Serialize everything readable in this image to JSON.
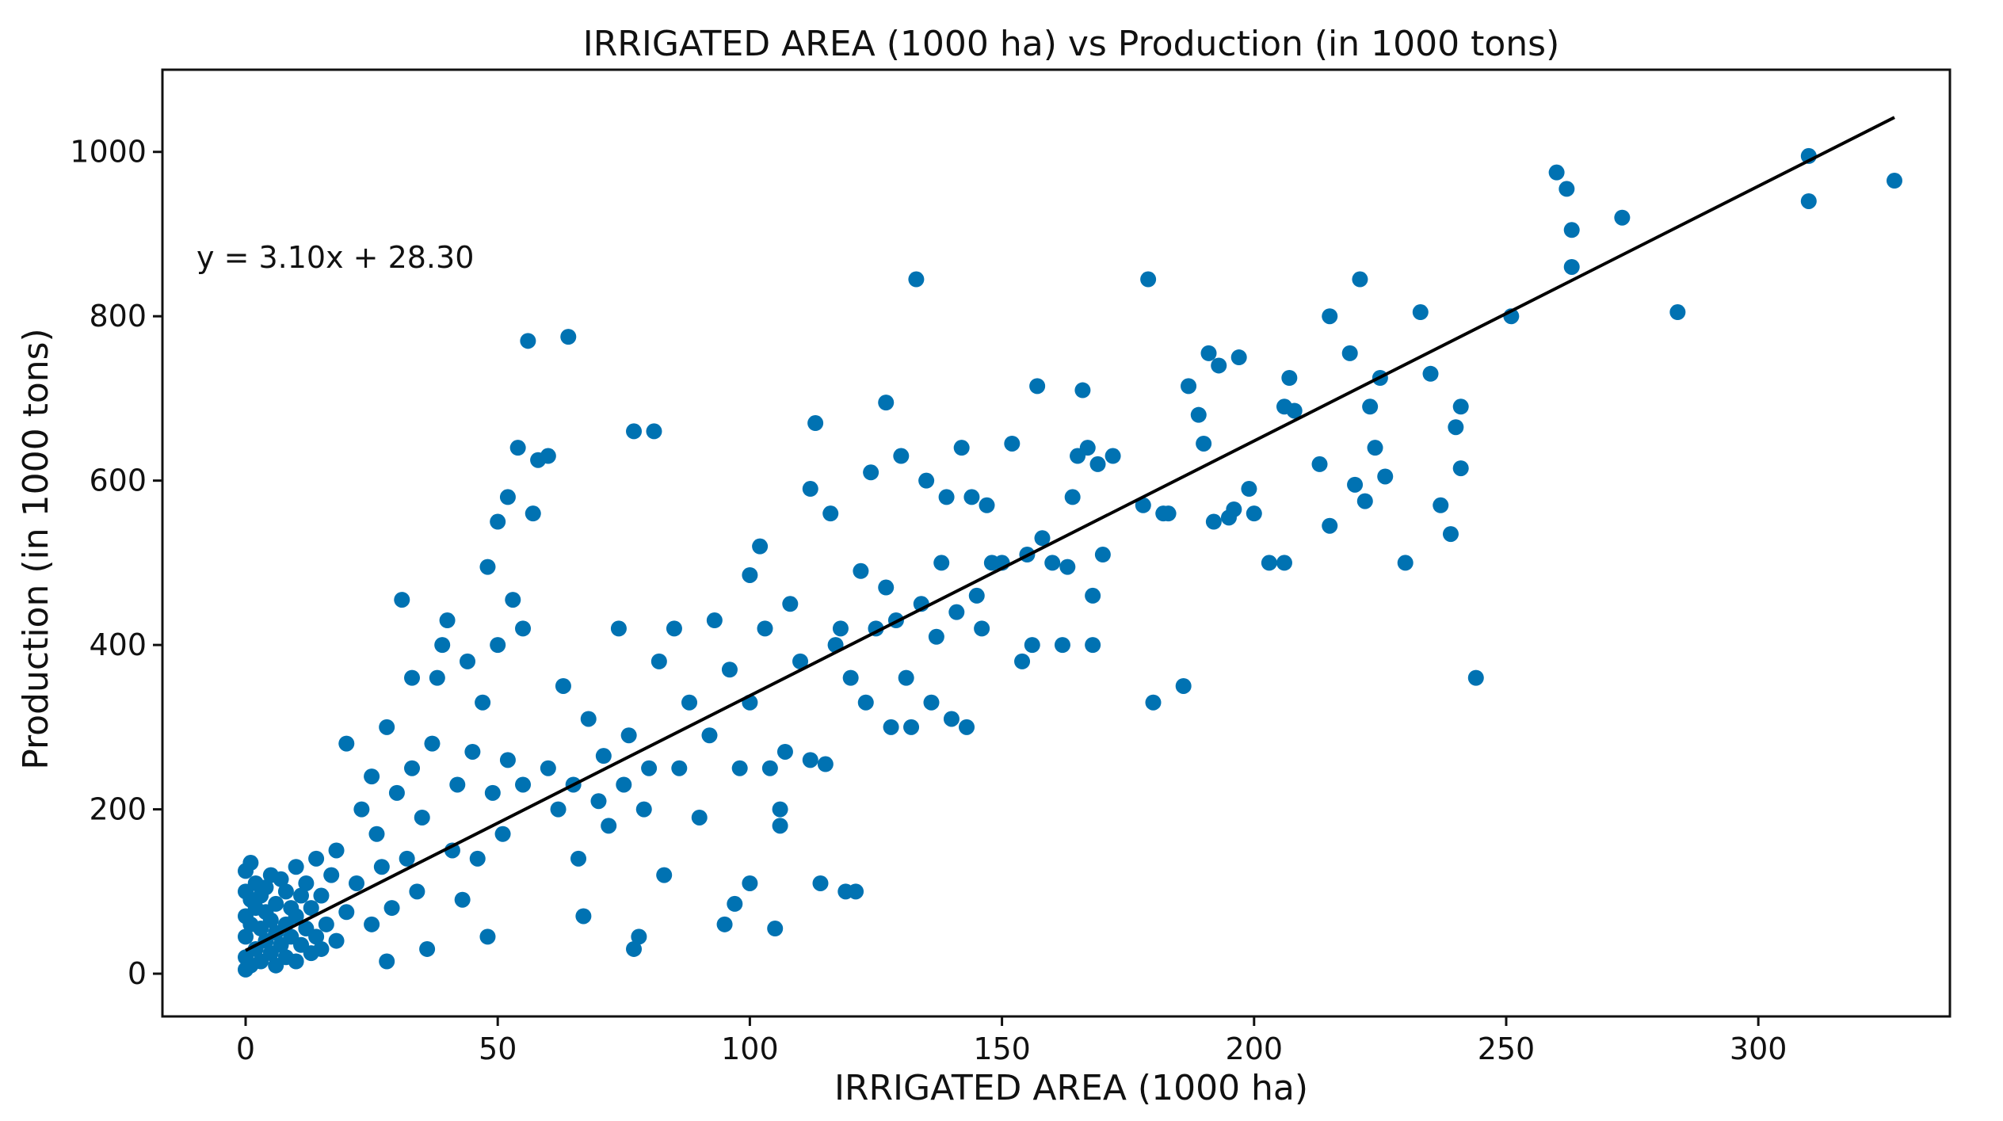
{
  "chart_data": {
    "type": "scatter",
    "title": "IRRIGATED AREA (1000 ha) vs Production (in 1000 tons)",
    "xlabel": "IRRIGATED AREA (1000 ha)",
    "ylabel": "Production (in 1000 tons)",
    "xlim": [
      -16.5,
      338
    ],
    "ylim": [
      -52,
      1100
    ],
    "xticks": [
      0,
      50,
      100,
      150,
      200,
      250,
      300
    ],
    "yticks": [
      0,
      200,
      400,
      600,
      800,
      1000
    ],
    "grid": false,
    "series": [
      {
        "name": "observations",
        "color": "#0072b2",
        "points": [
          [
            0,
            5
          ],
          [
            0,
            20
          ],
          [
            0,
            45
          ],
          [
            0,
            70
          ],
          [
            0,
            100
          ],
          [
            0,
            125
          ],
          [
            1,
            135
          ],
          [
            1,
            10
          ],
          [
            1,
            60
          ],
          [
            1,
            90
          ],
          [
            2,
            30
          ],
          [
            2,
            80
          ],
          [
            2,
            110
          ],
          [
            3,
            15
          ],
          [
            3,
            55
          ],
          [
            3,
            95
          ],
          [
            4,
            40
          ],
          [
            4,
            75
          ],
          [
            4,
            105
          ],
          [
            5,
            25
          ],
          [
            5,
            65
          ],
          [
            5,
            120
          ],
          [
            6,
            10
          ],
          [
            6,
            50
          ],
          [
            6,
            85
          ],
          [
            7,
            35
          ],
          [
            7,
            115
          ],
          [
            8,
            20
          ],
          [
            8,
            60
          ],
          [
            8,
            100
          ],
          [
            9,
            45
          ],
          [
            9,
            80
          ],
          [
            10,
            15
          ],
          [
            10,
            70
          ],
          [
            10,
            130
          ],
          [
            11,
            35
          ],
          [
            11,
            95
          ],
          [
            12,
            55
          ],
          [
            12,
            110
          ],
          [
            13,
            25
          ],
          [
            13,
            80
          ],
          [
            14,
            45
          ],
          [
            14,
            140
          ],
          [
            15,
            30
          ],
          [
            15,
            95
          ],
          [
            16,
            60
          ],
          [
            17,
            120
          ],
          [
            18,
            40
          ],
          [
            18,
            150
          ],
          [
            20,
            75
          ],
          [
            20,
            280
          ],
          [
            22,
            110
          ],
          [
            23,
            200
          ],
          [
            25,
            60
          ],
          [
            25,
            240
          ],
          [
            26,
            170
          ],
          [
            27,
            130
          ],
          [
            28,
            15
          ],
          [
            28,
            300
          ],
          [
            29,
            80
          ],
          [
            30,
            220
          ],
          [
            31,
            455
          ],
          [
            32,
            140
          ],
          [
            33,
            250
          ],
          [
            33,
            360
          ],
          [
            34,
            100
          ],
          [
            35,
            190
          ],
          [
            36,
            30
          ],
          [
            37,
            280
          ],
          [
            38,
            360
          ],
          [
            39,
            400
          ],
          [
            40,
            430
          ],
          [
            41,
            150
          ],
          [
            42,
            230
          ],
          [
            43,
            90
          ],
          [
            44,
            380
          ],
          [
            45,
            270
          ],
          [
            46,
            140
          ],
          [
            47,
            330
          ],
          [
            48,
            45
          ],
          [
            48,
            495
          ],
          [
            49,
            220
          ],
          [
            50,
            400
          ],
          [
            50,
            550
          ],
          [
            51,
            170
          ],
          [
            52,
            260
          ],
          [
            52,
            580
          ],
          [
            53,
            455
          ],
          [
            54,
            640
          ],
          [
            55,
            230
          ],
          [
            55,
            420
          ],
          [
            56,
            770
          ],
          [
            57,
            560
          ],
          [
            58,
            625
          ],
          [
            60,
            250
          ],
          [
            60,
            630
          ],
          [
            62,
            200
          ],
          [
            63,
            350
          ],
          [
            64,
            775
          ],
          [
            65,
            230
          ],
          [
            66,
            140
          ],
          [
            67,
            70
          ],
          [
            68,
            310
          ],
          [
            70,
            210
          ],
          [
            71,
            265
          ],
          [
            72,
            180
          ],
          [
            74,
            420
          ],
          [
            75,
            230
          ],
          [
            76,
            290
          ],
          [
            77,
            30
          ],
          [
            77,
            660
          ],
          [
            78,
            45
          ],
          [
            79,
            200
          ],
          [
            80,
            250
          ],
          [
            81,
            660
          ],
          [
            82,
            380
          ],
          [
            83,
            120
          ],
          [
            85,
            420
          ],
          [
            86,
            250
          ],
          [
            88,
            330
          ],
          [
            90,
            190
          ],
          [
            92,
            290
          ],
          [
            93,
            430
          ],
          [
            95,
            60
          ],
          [
            96,
            370
          ],
          [
            97,
            85
          ],
          [
            98,
            250
          ],
          [
            100,
            110
          ],
          [
            100,
            330
          ],
          [
            100,
            485
          ],
          [
            102,
            520
          ],
          [
            103,
            420
          ],
          [
            104,
            250
          ],
          [
            105,
            55
          ],
          [
            106,
            180
          ],
          [
            106,
            200
          ],
          [
            107,
            270
          ],
          [
            108,
            450
          ],
          [
            110,
            380
          ],
          [
            112,
            260
          ],
          [
            112,
            590
          ],
          [
            113,
            670
          ],
          [
            114,
            110
          ],
          [
            115,
            255
          ],
          [
            116,
            560
          ],
          [
            117,
            400
          ],
          [
            118,
            420
          ],
          [
            119,
            100
          ],
          [
            120,
            360
          ],
          [
            121,
            100
          ],
          [
            122,
            490
          ],
          [
            123,
            330
          ],
          [
            124,
            610
          ],
          [
            125,
            420
          ],
          [
            127,
            470
          ],
          [
            127,
            695
          ],
          [
            128,
            300
          ],
          [
            129,
            430
          ],
          [
            130,
            630
          ],
          [
            131,
            360
          ],
          [
            132,
            300
          ],
          [
            133,
            845
          ],
          [
            134,
            450
          ],
          [
            135,
            600
          ],
          [
            136,
            330
          ],
          [
            137,
            410
          ],
          [
            138,
            500
          ],
          [
            139,
            580
          ],
          [
            140,
            310
          ],
          [
            141,
            440
          ],
          [
            142,
            640
          ],
          [
            143,
            300
          ],
          [
            144,
            580
          ],
          [
            145,
            460
          ],
          [
            146,
            420
          ],
          [
            147,
            570
          ],
          [
            148,
            500
          ],
          [
            150,
            500
          ],
          [
            152,
            645
          ],
          [
            154,
            380
          ],
          [
            155,
            510
          ],
          [
            156,
            400
          ],
          [
            157,
            715
          ],
          [
            158,
            530
          ],
          [
            160,
            500
          ],
          [
            162,
            400
          ],
          [
            163,
            495
          ],
          [
            164,
            580
          ],
          [
            165,
            630
          ],
          [
            166,
            710
          ],
          [
            167,
            640
          ],
          [
            168,
            460
          ],
          [
            168,
            400
          ],
          [
            169,
            620
          ],
          [
            170,
            510
          ],
          [
            172,
            630
          ],
          [
            178,
            570
          ],
          [
            179,
            845
          ],
          [
            180,
            330
          ],
          [
            182,
            560
          ],
          [
            183,
            560
          ],
          [
            186,
            350
          ],
          [
            187,
            715
          ],
          [
            189,
            680
          ],
          [
            190,
            645
          ],
          [
            191,
            755
          ],
          [
            192,
            550
          ],
          [
            193,
            740
          ],
          [
            195,
            555
          ],
          [
            196,
            565
          ],
          [
            197,
            750
          ],
          [
            199,
            590
          ],
          [
            200,
            560
          ],
          [
            203,
            500
          ],
          [
            206,
            500
          ],
          [
            206,
            690
          ],
          [
            207,
            725
          ],
          [
            208,
            685
          ],
          [
            213,
            620
          ],
          [
            215,
            545
          ],
          [
            215,
            800
          ],
          [
            219,
            755
          ],
          [
            220,
            595
          ],
          [
            221,
            845
          ],
          [
            222,
            575
          ],
          [
            223,
            690
          ],
          [
            224,
            640
          ],
          [
            225,
            725
          ],
          [
            226,
            605
          ],
          [
            230,
            500
          ],
          [
            233,
            805
          ],
          [
            235,
            730
          ],
          [
            237,
            570
          ],
          [
            239,
            535
          ],
          [
            240,
            665
          ],
          [
            241,
            615
          ],
          [
            241,
            690
          ],
          [
            244,
            360
          ],
          [
            251,
            800
          ],
          [
            260,
            975
          ],
          [
            262,
            955
          ],
          [
            263,
            905
          ],
          [
            263,
            860
          ],
          [
            273,
            920
          ],
          [
            284,
            805
          ],
          [
            310,
            995
          ],
          [
            310,
            940
          ],
          [
            327,
            965
          ]
        ]
      }
    ],
    "regression_line": {
      "label": "y = 3.10x + 28.30",
      "slope": 3.1,
      "intercept": 28.3,
      "x_range": [
        0,
        327
      ],
      "color": "#000000"
    }
  }
}
